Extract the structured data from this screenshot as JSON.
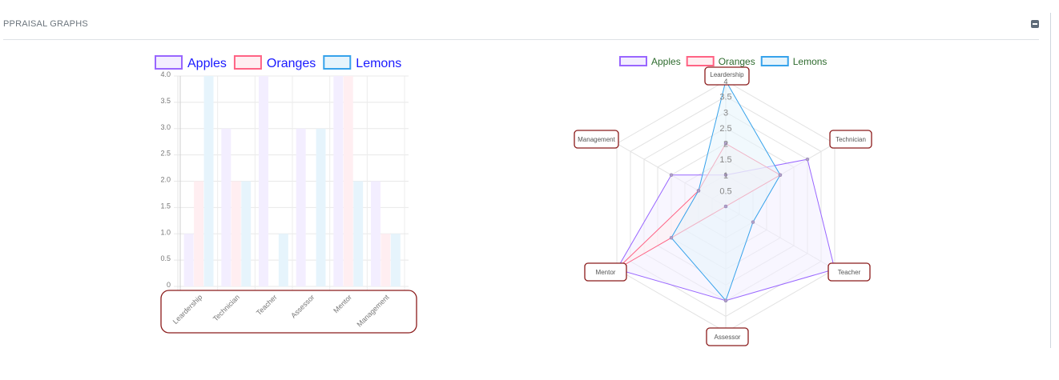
{
  "panel": {
    "title": "PPRAISAL GRAPHS",
    "collapse_icon": "minus-square-icon"
  },
  "colors": {
    "apples_border": "#9966ff",
    "apples_fill": "#f3eeff",
    "oranges_border": "#ff6384",
    "oranges_fill": "#ffeef1",
    "lemons_border": "#36a2eb",
    "lemons_fill": "#e6f4fc",
    "bar_legend_text": "#1a1aff",
    "radar_legend_text": "#2e6b2e",
    "highlight_box": "#8b1a1a"
  },
  "chart_data": [
    {
      "type": "bar",
      "title": "",
      "categories": [
        "Leardership",
        "Technician",
        "Teacher",
        "Assessor",
        "Mentor",
        "Management"
      ],
      "series": [
        {
          "name": "Apples",
          "values": [
            1,
            3,
            4,
            3,
            4,
            2
          ]
        },
        {
          "name": "Oranges",
          "values": [
            2,
            2,
            0,
            0,
            4,
            1
          ]
        },
        {
          "name": "Lemons",
          "values": [
            4,
            2,
            1,
            3,
            2,
            1
          ]
        }
      ],
      "yticks": [
        "0",
        "0.5",
        "1.0",
        "1.5",
        "2.0",
        "2.5",
        "3.0",
        "3.5",
        "4.0"
      ],
      "ylim": [
        0,
        4
      ],
      "xlabel": "",
      "ylabel": "",
      "grid": true,
      "legend_position": "top"
    },
    {
      "type": "radar",
      "title": "",
      "categories": [
        "Leardership",
        "Technician",
        "Teacher",
        "Assessor",
        "Mentor",
        "Management"
      ],
      "series": [
        {
          "name": "Apples",
          "values": [
            1,
            3,
            4,
            3,
            4,
            2
          ]
        },
        {
          "name": "Oranges",
          "values": [
            2,
            2,
            0,
            0,
            4,
            1
          ]
        },
        {
          "name": "Lemons",
          "values": [
            4,
            2,
            1,
            3,
            2,
            1
          ]
        }
      ],
      "rticks": [
        "0.5",
        "1",
        "1.5",
        "2",
        "2.5",
        "3",
        "3.5",
        "4"
      ],
      "rlim": [
        0,
        4
      ],
      "grid": true,
      "legend_position": "top"
    }
  ]
}
